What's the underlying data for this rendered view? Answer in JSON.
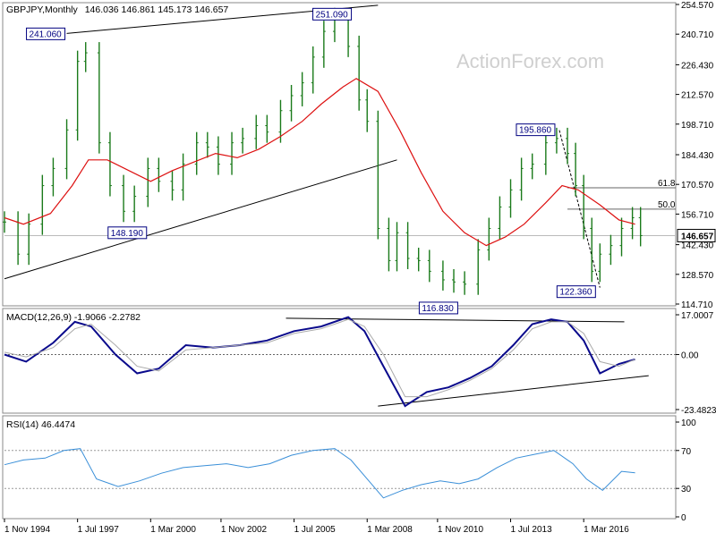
{
  "header": {
    "symbol": "GBPJPY,Monthly",
    "ohlc": "146.036 146.861 145.173 146.657"
  },
  "watermark": "ActionForex.com",
  "colors": {
    "price": "#1a7a1a",
    "ma": "#dd1111",
    "macd_main": "#0a0a8c",
    "macd_signal": "#aaaaaa",
    "rsi": "#3a8fd8",
    "trendline": "#000000",
    "fib": "#666666",
    "grid": "#bbbbbb",
    "current_box": "#ffffff"
  },
  "chart_data": [
    {
      "type": "line",
      "panel": "price",
      "y_axis_ticks": [
        "254.570",
        "240.710",
        "226.430",
        "212.570",
        "198.710",
        "184.430",
        "170.570",
        "156.710",
        "142.430",
        "128.570",
        "114.710"
      ],
      "ylim": [
        114.71,
        254.57
      ],
      "current_price_label": "146.657",
      "series": [
        {
          "type": "bar_ohlc",
          "x": [
            1994.8,
            1995.3,
            1995.7,
            1996.2,
            1996.6,
            1997.1,
            1997.5,
            1997.8,
            1998.3,
            1998.7,
            1999.2,
            1999.6,
            2000.1,
            2000.5,
            2001.0,
            2001.4,
            2001.9,
            2002.3,
            2002.7,
            2003.2,
            2003.6,
            2004.1,
            2004.5,
            2005.0,
            2005.4,
            2005.8,
            2006.2,
            2006.6,
            2007.0,
            2007.5,
            2007.9,
            2008.2,
            2008.6,
            2009.0,
            2009.3,
            2009.7,
            2010.1,
            2010.5,
            2011.0,
            2011.4,
            2011.8,
            2012.3,
            2012.7,
            2013.1,
            2013.5,
            2013.9,
            2014.3,
            2014.8,
            2015.2,
            2015.6,
            2015.9,
            2016.2,
            2016.5,
            2016.8,
            2017.2,
            2017.6,
            2018.0,
            2018.3
          ],
          "y": [
            153,
            138,
            152,
            170,
            178,
            196,
            228,
            232,
            190,
            170,
            158,
            165,
            178,
            172,
            168,
            180,
            190,
            188,
            180,
            190,
            192,
            198,
            195,
            205,
            212,
            218,
            230,
            242,
            248,
            235,
            210,
            200,
            150,
            135,
            148,
            136,
            135,
            130,
            126,
            125,
            124,
            140,
            150,
            160,
            168,
            178,
            180,
            190,
            192,
            185,
            170,
            150,
            130,
            138,
            142,
            150,
            155,
            146.657
          ]
        },
        {
          "name": "",
          "x": [
            1994.8,
            1995.5,
            1996.5,
            1997.3,
            1997.9,
            1998.6,
            1999.4,
            2000.2,
            2001.0,
            2001.8,
            2002.6,
            2003.4,
            2004.2,
            2005.0,
            2005.8,
            2006.5,
            2007.3,
            2007.8,
            2008.6,
            2009.4,
            2010.2,
            2011.0,
            2011.8,
            2012.6,
            2013.3,
            2014.0,
            2014.8,
            2015.4,
            2016.0,
            2016.8,
            2017.5,
            2018.1
          ],
          "y": [
            155,
            152,
            157,
            170,
            182,
            182,
            177,
            172,
            177,
            181,
            185,
            183,
            187,
            193,
            200,
            208,
            216,
            220,
            214,
            196,
            176,
            158,
            148,
            142,
            146,
            152,
            162,
            170,
            168,
            161,
            154,
            152
          ]
        }
      ],
      "annotations": [
        {
          "label": "241.060",
          "x": 1997.1,
          "y": 241.06
        },
        {
          "label": "251.090",
          "x": 2007.5,
          "y": 251.09
        },
        {
          "label": "148.190",
          "x": 2000.0,
          "y": 148.19
        },
        {
          "label": "116.830",
          "x": 2011.0,
          "y": 116.83
        },
        {
          "label": "195.860",
          "x": 2015.3,
          "y": 195.86
        },
        {
          "label": "122.360",
          "x": 2016.8,
          "y": 122.36
        }
      ],
      "fib_levels": [
        {
          "label": "61.8",
          "value": 169.0
        },
        {
          "label": "50.0",
          "value": 159.0
        }
      ],
      "xlabel": "",
      "ylabel": ""
    },
    {
      "type": "line",
      "panel": "macd",
      "title": "MACD(12,26,9) -1.9066 -2.2782",
      "y_axis_ticks": [
        "17.0007",
        "0.00",
        "-23.4823"
      ],
      "ylim": [
        -23.4823,
        17.0007
      ],
      "series": [
        {
          "name": "",
          "x": [
            1994.8,
            1995.6,
            1996.6,
            1997.4,
            1998.0,
            1998.9,
            1999.7,
            2000.5,
            2001.5,
            2002.5,
            2003.5,
            2004.5,
            2005.5,
            2006.5,
            2007.5,
            2008.1,
            2008.8,
            2009.6,
            2010.4,
            2011.2,
            2012.0,
            2012.8,
            2013.6,
            2014.3,
            2015.0,
            2015.6,
            2016.2,
            2016.8,
            2017.5,
            2018.1
          ],
          "y": [
            0,
            -3,
            5,
            14,
            12,
            0,
            -8,
            -6,
            4,
            3,
            4,
            6,
            10,
            12,
            16,
            10,
            -5,
            -22,
            -16,
            -14,
            -10,
            -5,
            4,
            13,
            15,
            14,
            6,
            -8,
            -4,
            -2
          ]
        },
        {
          "name": "",
          "x": [
            1994.8,
            1995.6,
            1996.6,
            1997.4,
            1998.0,
            1998.9,
            1999.7,
            2000.5,
            2001.5,
            2002.5,
            2003.5,
            2004.5,
            2005.5,
            2006.5,
            2007.5,
            2008.1,
            2008.8,
            2009.6,
            2010.4,
            2011.2,
            2012.0,
            2012.8,
            2013.6,
            2014.3,
            2015.0,
            2015.6,
            2016.2,
            2016.8,
            2017.5,
            2018.1
          ],
          "y": [
            1,
            -1,
            3,
            11,
            13,
            4,
            -5,
            -7,
            2,
            3,
            4,
            5,
            9,
            11,
            15,
            12,
            0,
            -18,
            -18,
            -15,
            -11,
            -6,
            2,
            11,
            14,
            14,
            9,
            -3,
            -5,
            -2
          ]
        }
      ],
      "xlabel": "",
      "ylabel": ""
    },
    {
      "type": "line",
      "panel": "rsi",
      "title": "RSI(14) 46.4474",
      "y_axis_ticks": [
        "100",
        "70",
        "30",
        "0"
      ],
      "ylim": [
        0,
        100
      ],
      "series": [
        {
          "name": "",
          "x": [
            1994.8,
            1995.5,
            1996.3,
            1997.0,
            1997.6,
            1998.2,
            1999.0,
            1999.8,
            2000.6,
            2001.4,
            2002.2,
            2003.0,
            2003.8,
            2004.6,
            2005.4,
            2006.2,
            2007.0,
            2007.6,
            2008.2,
            2008.8,
            2009.5,
            2010.2,
            2010.9,
            2011.6,
            2012.3,
            2013.0,
            2013.7,
            2014.4,
            2015.1,
            2015.8,
            2016.3,
            2016.9,
            2017.6,
            2018.1
          ],
          "y": [
            55,
            60,
            62,
            70,
            72,
            40,
            32,
            38,
            46,
            52,
            54,
            56,
            52,
            56,
            65,
            70,
            72,
            60,
            40,
            20,
            28,
            34,
            38,
            35,
            40,
            52,
            62,
            66,
            70,
            56,
            40,
            28,
            48,
            46.4474
          ]
        }
      ],
      "xlabel": "",
      "ylabel": ""
    }
  ],
  "x_axis_labels": [
    "1 Nov 1994",
    "1 Jul 1997",
    "1 Mar 2000",
    "1 Nov 2002",
    "1 Jul 2005",
    "1 Mar 2008",
    "1 Nov 2010",
    "1 Jul 2013",
    "1 Mar 2016"
  ]
}
